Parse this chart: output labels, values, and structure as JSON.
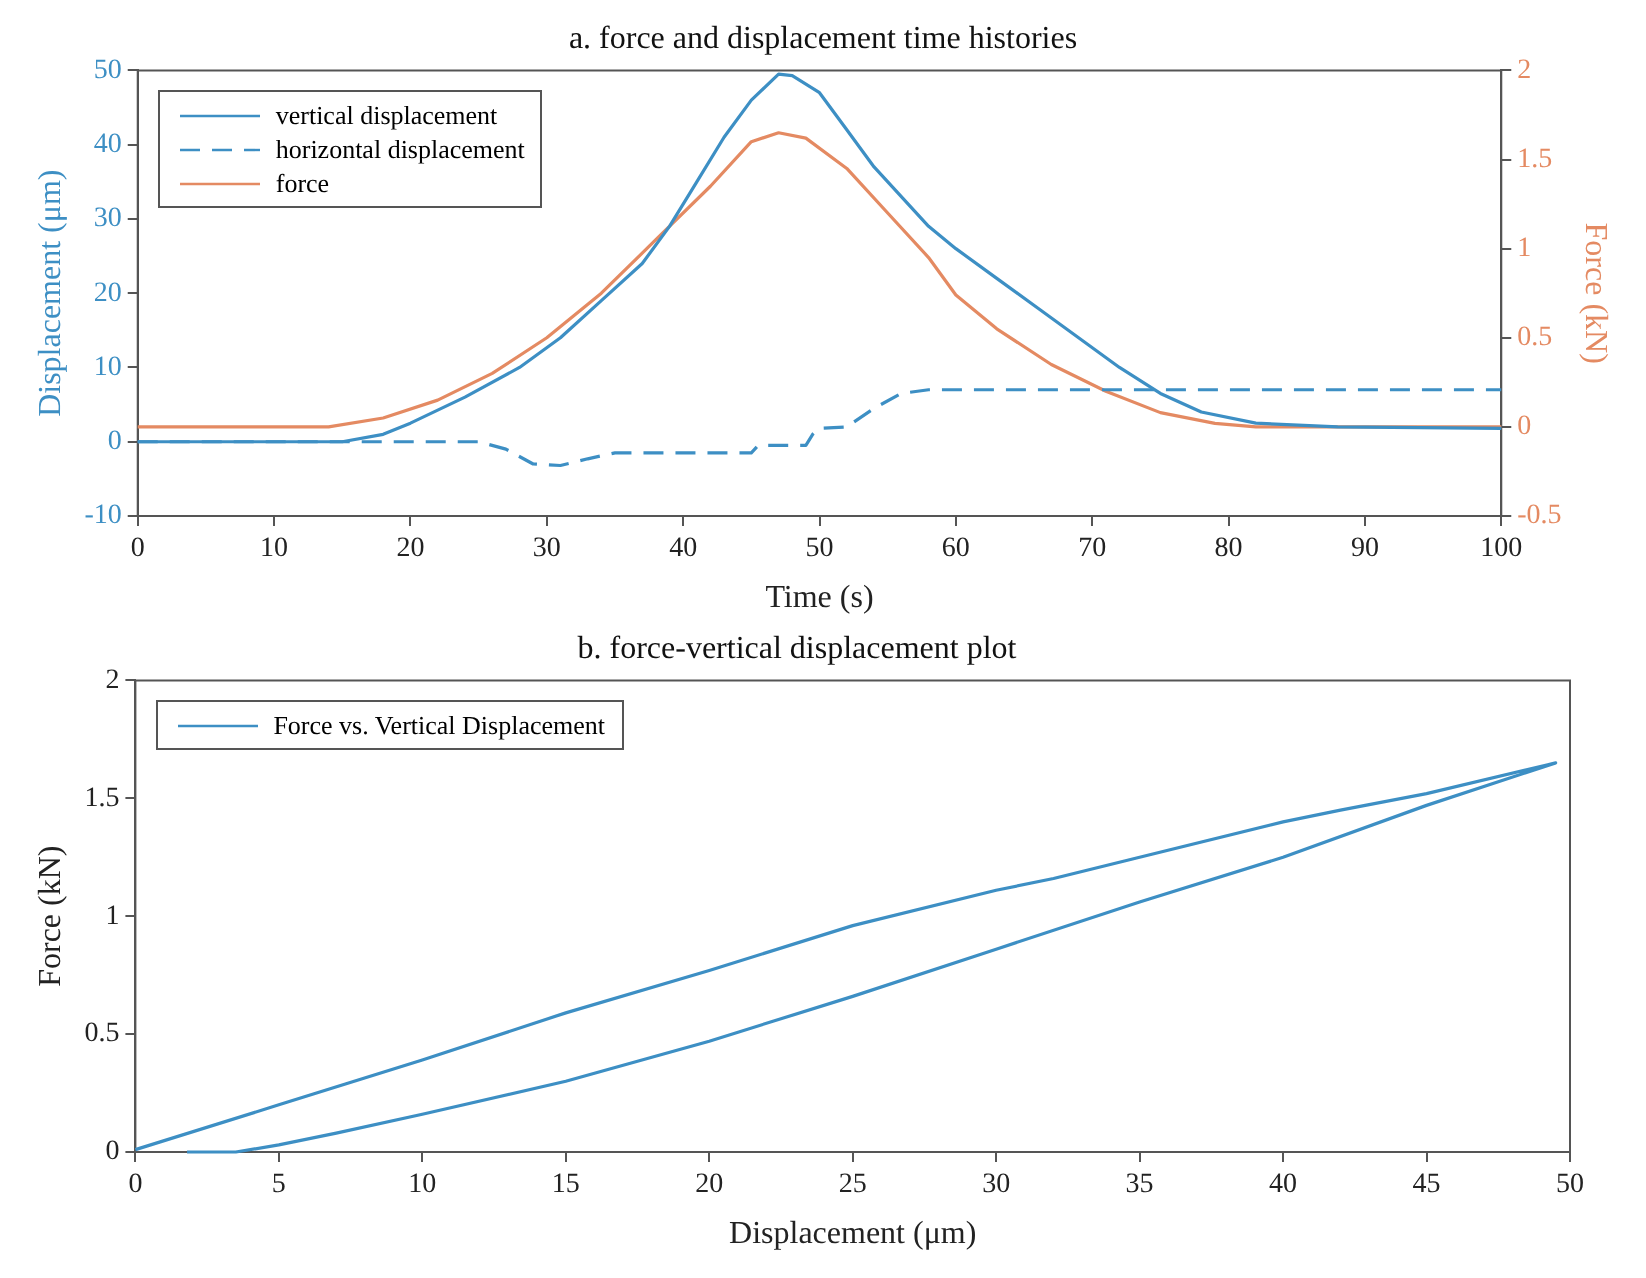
{
  "chart_data": [
    {
      "type": "line",
      "title": "a. force and displacement time histories",
      "xlabel": "Time (s)",
      "ylabel": "Displacement (μm)",
      "y2label": "Force (kN)",
      "xlim": [
        0,
        100
      ],
      "xticks": [
        0,
        10,
        20,
        30,
        40,
        50,
        60,
        70,
        80,
        90,
        100
      ],
      "ylim": [
        -10,
        50
      ],
      "yticks": [
        -10,
        0,
        10,
        20,
        30,
        40,
        50
      ],
      "y2lim": [
        -0.5,
        2
      ],
      "y2ticks": [
        -0.5,
        0,
        0.5,
        1,
        1.5,
        2
      ],
      "grid": false,
      "legend": "top left",
      "marker": "none",
      "series": [
        {
          "name": "vertical displacement",
          "color": "#3d8fc4",
          "line_style": "solid",
          "x": [
            0,
            10,
            15,
            18,
            20,
            24,
            28,
            31,
            34,
            37,
            39,
            41,
            43,
            45,
            47,
            48,
            50,
            52,
            54,
            56,
            58,
            60,
            63,
            66,
            69,
            72,
            75,
            78,
            82,
            88,
            100
          ],
          "values": [
            0,
            0,
            0,
            1,
            2.5,
            6,
            10,
            14,
            19,
            24,
            29,
            35,
            41,
            46,
            49.5,
            49.3,
            47,
            42,
            37,
            33,
            29,
            26,
            22,
            18,
            14,
            10,
            6.5,
            4,
            2.5,
            2,
            1.8
          ]
        },
        {
          "name": "horizontal displacement",
          "color": "#3d8fc4",
          "line_style": "dashed",
          "x": [
            0,
            25,
            27,
            29,
            31,
            33,
            35,
            45,
            45.5,
            49,
            49.5,
            50,
            52,
            54,
            56,
            58,
            100
          ],
          "values": [
            0,
            0,
            -1,
            -3,
            -3.2,
            -2.3,
            -1.5,
            -1.5,
            -0.5,
            -0.5,
            1,
            1.8,
            2,
            4.5,
            6.5,
            7,
            7
          ]
        },
        {
          "name": "force",
          "color": "#e48a62",
          "line_style": "solid",
          "axis": "y2",
          "x": [
            0,
            14,
            18,
            22,
            26,
            30,
            34,
            38,
            42,
            45,
            47,
            49,
            52,
            55,
            58,
            60,
            63,
            67,
            71,
            75,
            79,
            82,
            100
          ],
          "values": [
            0,
            0,
            0.05,
            0.15,
            0.3,
            0.5,
            0.75,
            1.05,
            1.35,
            1.6,
            1.65,
            1.62,
            1.45,
            1.2,
            0.95,
            0.74,
            0.55,
            0.35,
            0.2,
            0.08,
            0.02,
            0,
            0
          ]
        }
      ]
    },
    {
      "type": "line",
      "title": "b. force-vertical displacement plot",
      "xlabel": "Displacement (μm)",
      "ylabel": "Force (kN)",
      "xlim": [
        0,
        50
      ],
      "xticks": [
        0,
        5,
        10,
        15,
        20,
        25,
        30,
        35,
        40,
        45,
        50
      ],
      "ylim": [
        0,
        2
      ],
      "yticks": [
        0,
        0.5,
        1,
        1.5,
        2
      ],
      "grid": false,
      "legend": "top left",
      "marker": "none",
      "series": [
        {
          "name": "Force vs. Vertical Displacement",
          "color": "#3d8fc4",
          "line_style": "solid",
          "x": [
            0,
            5,
            10,
            15,
            20,
            25,
            30,
            32,
            35,
            40,
            42,
            45,
            49.5,
            45,
            40,
            35,
            30,
            25,
            20,
            15,
            10,
            7,
            5,
            3.5,
            1.8
          ],
          "values": [
            0.01,
            0.2,
            0.39,
            0.59,
            0.77,
            0.96,
            1.11,
            1.16,
            1.25,
            1.4,
            1.45,
            1.52,
            1.65,
            1.47,
            1.25,
            1.06,
            0.86,
            0.66,
            0.47,
            0.3,
            0.16,
            0.08,
            0.03,
            0,
            0
          ]
        }
      ]
    }
  ]
}
